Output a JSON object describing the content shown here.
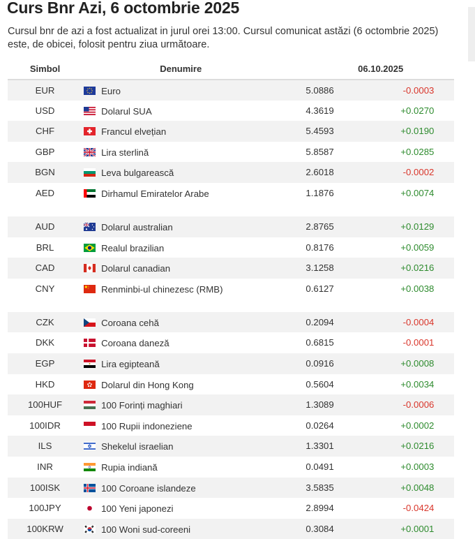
{
  "title": "Curs Bnr Azi, 6 octombrie 2025",
  "intro": "Cursul bnr de azi a fost actualizat in jurul orei 13:00. Cursul comunicat astăzi (6 octombrie 2025) este, de obicei, folosit pentru ziua următoare.",
  "table": {
    "headers": {
      "symbol": "Simbol",
      "name": "Denumire",
      "date": "06.10.2025"
    },
    "rows": [
      {
        "symbol": "EUR",
        "name": "Euro",
        "rate": "5.0886",
        "change": "-0.0003",
        "flag": "eu-flag-icon"
      },
      {
        "symbol": "USD",
        "name": "Dolarul SUA",
        "rate": "4.3619",
        "change": "+0.0270",
        "flag": "us-flag-icon"
      },
      {
        "symbol": "CHF",
        "name": "Francul elvețian",
        "rate": "5.4593",
        "change": "+0.0190",
        "flag": "ch-flag-icon"
      },
      {
        "symbol": "GBP",
        "name": "Lira sterlină",
        "rate": "5.8587",
        "change": "+0.0285",
        "flag": "gb-flag-icon"
      },
      {
        "symbol": "BGN",
        "name": "Leva bulgarească",
        "rate": "2.6018",
        "change": "-0.0002",
        "flag": "bg-flag-icon"
      },
      {
        "symbol": "AED",
        "name": "Dirhamul Emiratelor Arabe",
        "rate": "1.1876",
        "change": "+0.0074",
        "flag": "ae-flag-icon"
      },
      {
        "symbol": "AUD",
        "name": "Dolarul australian",
        "rate": "2.8765",
        "change": "+0.0129",
        "flag": "au-flag-icon"
      },
      {
        "symbol": "BRL",
        "name": "Realul brazilian",
        "rate": "0.8176",
        "change": "+0.0059",
        "flag": "br-flag-icon"
      },
      {
        "symbol": "CAD",
        "name": "Dolarul canadian",
        "rate": "3.1258",
        "change": "+0.0216",
        "flag": "ca-flag-icon"
      },
      {
        "symbol": "CNY",
        "name": "Renminbi-ul chinezesc (RMB)",
        "rate": "0.6127",
        "change": "+0.0038",
        "flag": "cn-flag-icon"
      },
      {
        "symbol": "CZK",
        "name": "Coroana cehă",
        "rate": "0.2094",
        "change": "-0.0004",
        "flag": "cz-flag-icon"
      },
      {
        "symbol": "DKK",
        "name": "Coroana daneză",
        "rate": "0.6815",
        "change": "-0.0001",
        "flag": "dk-flag-icon"
      },
      {
        "symbol": "EGP",
        "name": "Lira egipteană",
        "rate": "0.0916",
        "change": "+0.0008",
        "flag": "eg-flag-icon"
      },
      {
        "symbol": "HKD",
        "name": "Dolarul din Hong Kong",
        "rate": "0.5604",
        "change": "+0.0034",
        "flag": "hk-flag-icon"
      },
      {
        "symbol": "100HUF",
        "name": "100 Forinți maghiari",
        "rate": "1.3089",
        "change": "-0.0006",
        "flag": "hu-flag-icon"
      },
      {
        "symbol": "100IDR",
        "name": "100 Rupii indoneziene",
        "rate": "0.0264",
        "change": "+0.0002",
        "flag": "id-flag-icon"
      },
      {
        "symbol": "ILS",
        "name": "Shekelul israelian",
        "rate": "1.3301",
        "change": "+0.0216",
        "flag": "il-flag-icon"
      },
      {
        "symbol": "INR",
        "name": "Rupia indiană",
        "rate": "0.0491",
        "change": "+0.0003",
        "flag": "in-flag-icon"
      },
      {
        "symbol": "100ISK",
        "name": "100 Coroane islandeze",
        "rate": "3.5835",
        "change": "+0.0048",
        "flag": "is-flag-icon"
      },
      {
        "symbol": "100JPY",
        "name": "100 Yeni japonezi",
        "rate": "2.8994",
        "change": "-0.0424",
        "flag": "jp-flag-icon"
      },
      {
        "symbol": "100KRW",
        "name": "100 Woni sud-coreeni",
        "rate": "0.3084",
        "change": "+0.0001",
        "flag": "kr-flag-icon"
      }
    ]
  },
  "colors": {
    "negative": "#d9362b",
    "positive": "#2e8b2e",
    "stripe": "#f2f2f2"
  }
}
